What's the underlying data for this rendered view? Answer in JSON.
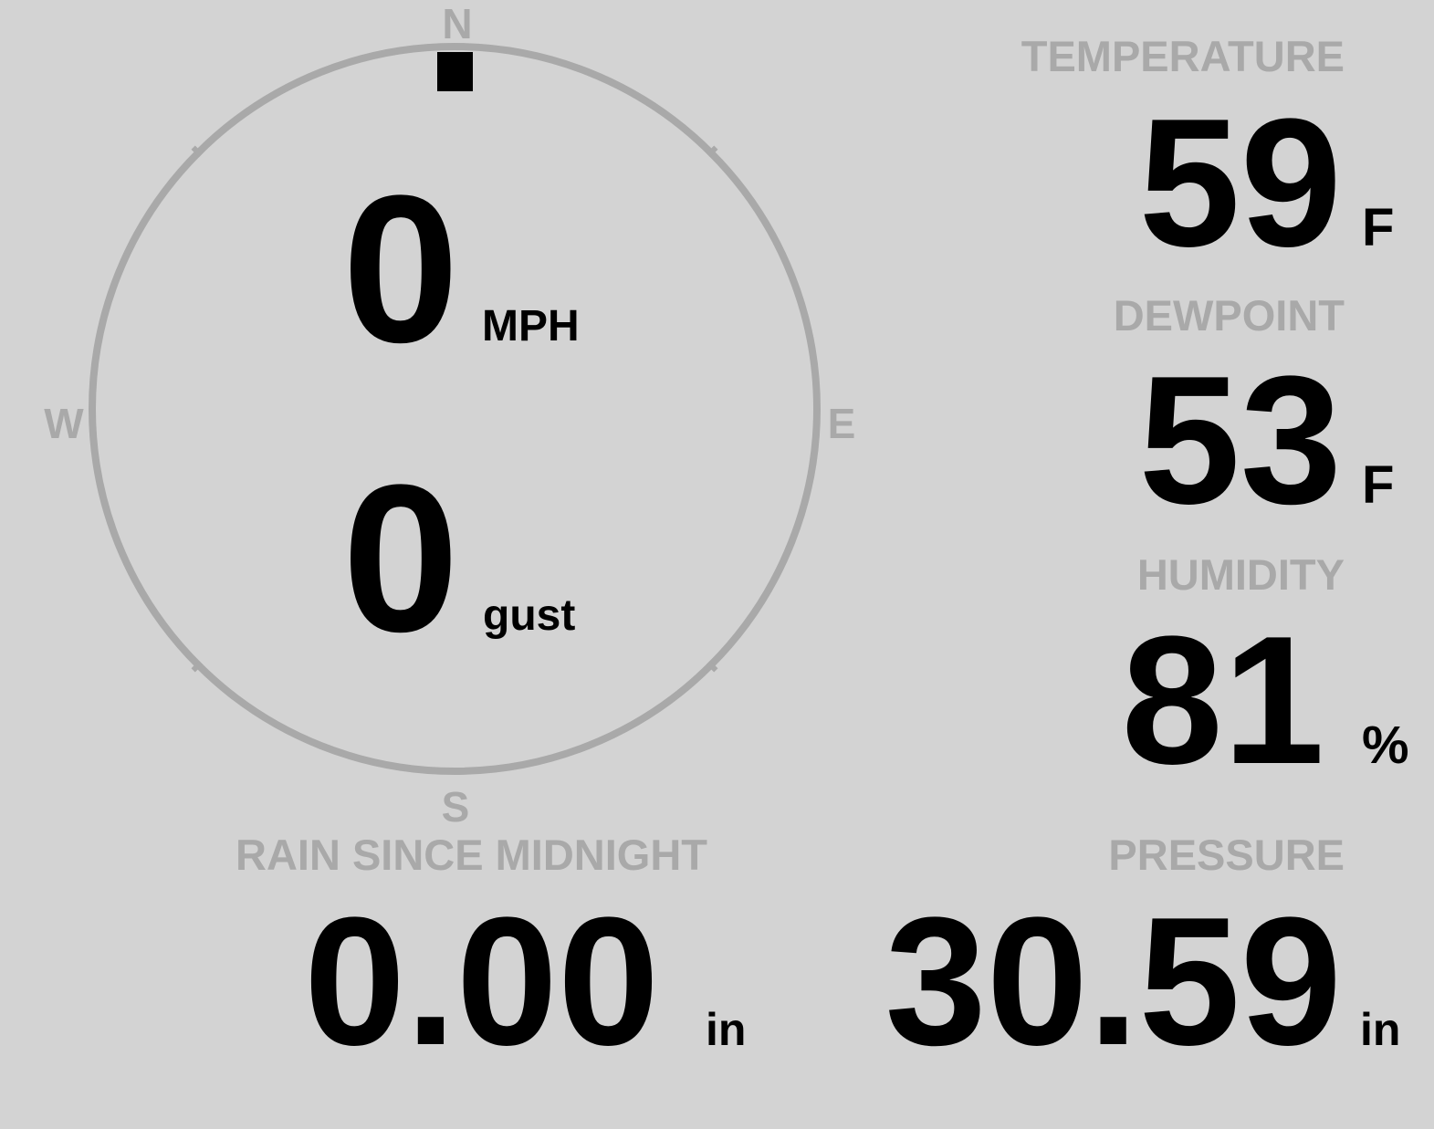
{
  "colors": {
    "background": "#d3d3d3",
    "label": "#a9a9a9",
    "value": "#000000"
  },
  "wind": {
    "compass": {
      "north": "N",
      "east": "E",
      "south": "S",
      "west": "W"
    },
    "direction_degrees": 0,
    "speed": "0",
    "speed_unit": "MPH",
    "gust": "0",
    "gust_unit": "gust"
  },
  "temperature": {
    "label": "TEMPERATURE",
    "value": "59",
    "unit": "F"
  },
  "dewpoint": {
    "label": "DEWPOINT",
    "value": "53",
    "unit": "F"
  },
  "humidity": {
    "label": "HUMIDITY",
    "value": "81",
    "unit": "%"
  },
  "rain": {
    "label": "RAIN SINCE MIDNIGHT",
    "value": "0.00",
    "unit": "in"
  },
  "pressure": {
    "label": "PRESSURE",
    "value": "30.59",
    "unit": "in"
  }
}
